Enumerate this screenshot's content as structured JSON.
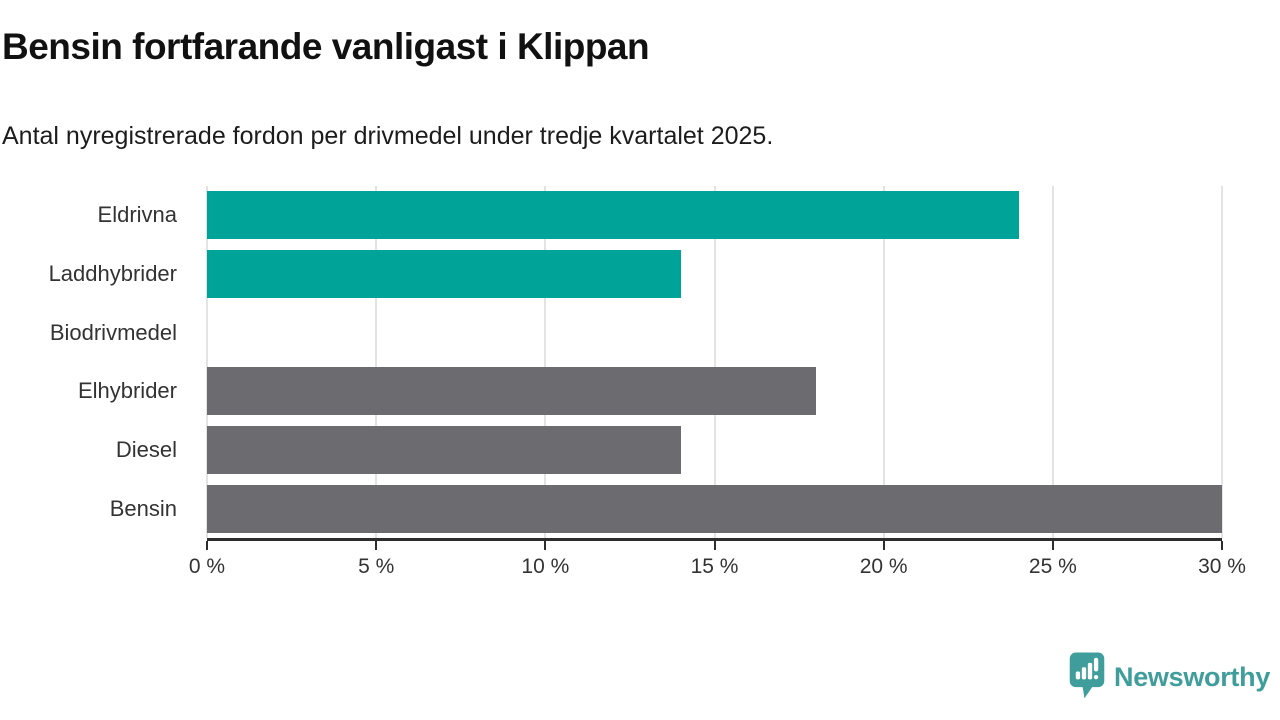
{
  "header": {
    "title": "Bensin fortfarande vanligast i Klippan",
    "subtitle": "Antal nyregistrerade fordon per drivmedel under tredje kvartalet 2025."
  },
  "chart_data": {
    "type": "bar",
    "orientation": "horizontal",
    "title": "Bensin fortfarande vanligast i Klippan",
    "subtitle": "Antal nyregistrerade fordon per drivmedel under tredje kvartalet 2025.",
    "categories": [
      "Eldrivna",
      "Laddhybrider",
      "Biodrivmedel",
      "Elhybrider",
      "Diesel",
      "Bensin"
    ],
    "values": [
      24,
      14,
      0,
      18,
      14,
      30
    ],
    "unit": "%",
    "bar_colors": [
      "#00a398",
      "#00a398",
      "#00a398",
      "#6c6b70",
      "#6c6b70",
      "#6c6b70"
    ],
    "xlim": [
      0,
      30
    ],
    "x_ticks": [
      0,
      5,
      10,
      15,
      20,
      25,
      30
    ],
    "x_tick_labels": [
      "0 %",
      "5 %",
      "10 %",
      "15 %",
      "20 %",
      "25 %",
      "30 %"
    ],
    "grid": true,
    "legend": "none"
  },
  "colors": {
    "teal": "#00a398",
    "gray": "#6c6b70",
    "gridline": "#e3e3e3",
    "axis": "#2d2d2d",
    "title_text": "#111111",
    "label_text": "#333333",
    "brand_teal": "#3f9e9b"
  },
  "footer": {
    "brand": "Newsworthy",
    "logo_icon": "bar-chart-speech-bubble-icon"
  }
}
